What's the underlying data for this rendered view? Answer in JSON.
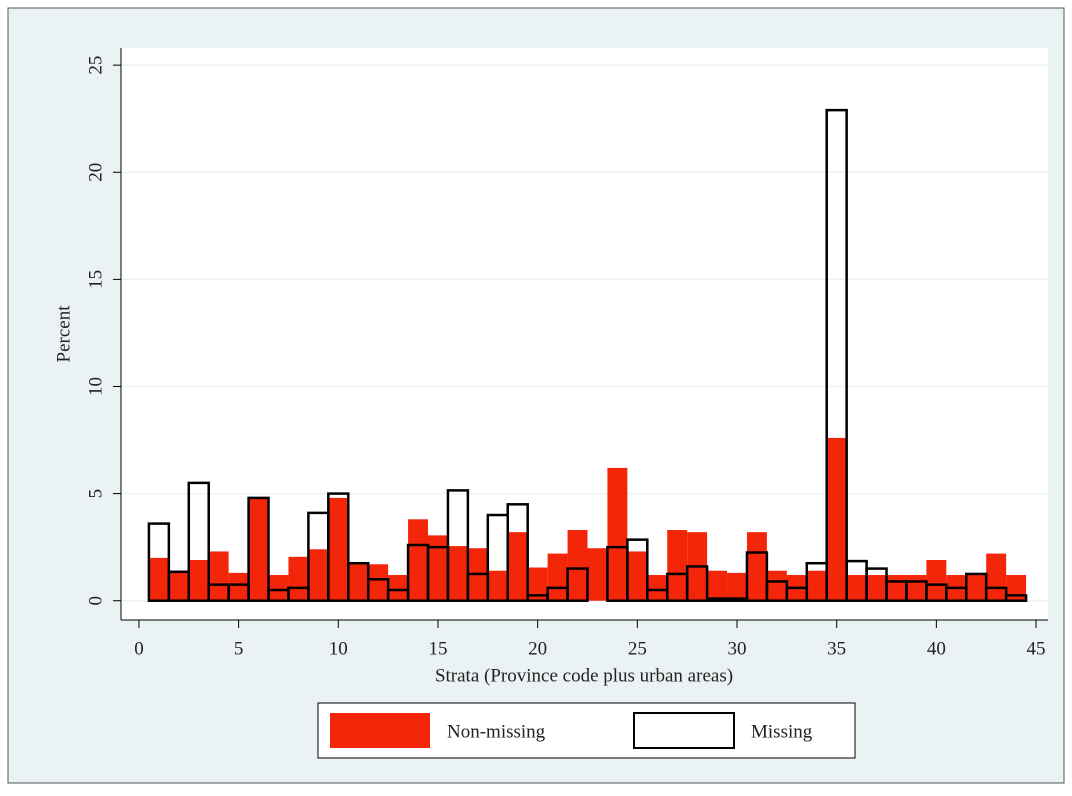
{
  "chart_data": {
    "type": "histogram",
    "x_label": "Strata (Province code plus urban areas)",
    "y_label": "Percent",
    "bins": [
      0.5,
      1.5,
      2.5,
      3.5,
      4.5,
      5.5,
      6.5,
      7.5,
      8.5,
      9.5,
      10.5,
      11.5,
      12.5,
      13.5,
      14.5,
      15.5,
      16.5,
      17.5,
      18.5,
      19.5,
      20.5,
      21.5,
      22.5,
      23.5,
      24.5,
      25.5,
      26.5,
      27.5,
      28.5,
      29.5,
      30.5,
      31.5,
      32.5,
      33.5,
      34.5,
      35.5,
      36.5,
      37.5,
      38.5,
      39.5,
      40.5,
      41.5,
      42.5,
      43.5,
      44.5
    ],
    "series": [
      {
        "name": "Non-missing",
        "color": "#f3260a",
        "fill": true,
        "values": [
          2.0,
          1.4,
          1.9,
          2.3,
          1.3,
          4.8,
          1.2,
          2.05,
          2.4,
          4.8,
          1.75,
          1.7,
          1.2,
          3.8,
          3.05,
          2.55,
          2.45,
          1.4,
          3.2,
          1.55,
          2.2,
          3.3,
          2.45,
          6.2,
          2.3,
          1.2,
          3.3,
          3.2,
          1.4,
          1.3,
          3.2,
          1.4,
          1.2,
          1.4,
          7.6,
          1.2,
          1.2,
          1.2,
          1.2,
          1.9,
          1.2,
          1.2,
          2.2,
          1.2
        ]
      },
      {
        "name": "Missing",
        "color": "#000000",
        "fill": false,
        "values": [
          3.6,
          1.35,
          5.5,
          0.75,
          0.75,
          4.8,
          0.5,
          0.6,
          4.1,
          5.0,
          1.75,
          1.0,
          0.5,
          2.6,
          2.5,
          5.15,
          1.25,
          4.0,
          4.5,
          0.25,
          0.6,
          1.5,
          0,
          2.5,
          2.85,
          0.5,
          1.25,
          1.6,
          0.1,
          0.1,
          2.25,
          0.9,
          0.6,
          1.75,
          22.9,
          1.85,
          1.5,
          0.9,
          0.9,
          0.75,
          0.6,
          1.25,
          0.6,
          0.25
        ]
      }
    ],
    "xlim": [
      -0.9,
      45.6
    ],
    "ylim": [
      -0.9,
      25.8
    ],
    "xticks": [
      0,
      5,
      10,
      15,
      20,
      25,
      30,
      35,
      40,
      45
    ],
    "yticks": [
      0,
      5,
      10,
      15,
      20,
      25
    ],
    "grid": true,
    "legend": "bottom"
  }
}
